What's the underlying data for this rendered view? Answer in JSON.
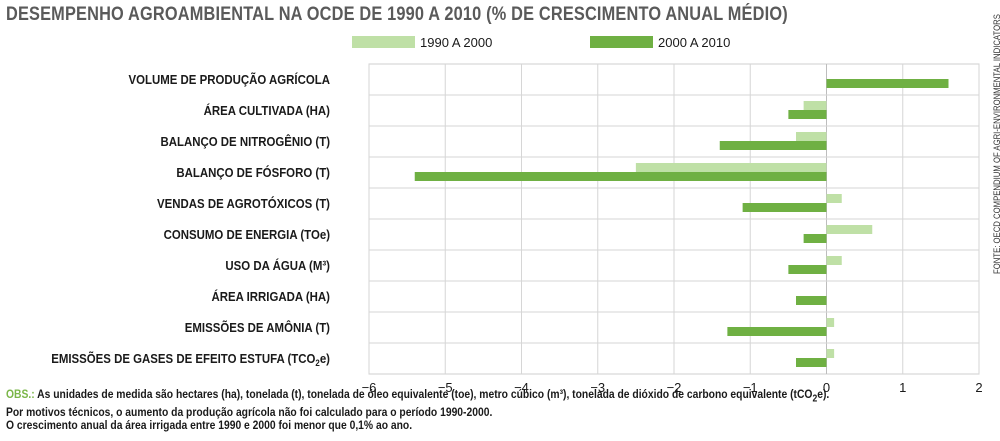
{
  "title": "DESEMPENHO AGROAMBIENTAL NA OCDE DE 1990 A 2010 (% DE CRESCIMENTO ANUAL MÉDIO)",
  "source": "FONTE: OECD COMPENDIUM OF AGRI-ENVIRONMENTAL INDICATORS",
  "notes": {
    "lead": "OBS.:",
    "line1_html": " As unidades de medida são hectares (ha), tonelada (t), tonelada de óleo equivalente (toe), metro cúbico (m³), tonelada de dióxido de carbono equivalente (tCO<sub>2</sub>e).",
    "line2": "Por motivos técnicos, o aumento da produção agrícola não foi calculado para o período 1990-2000.",
    "line3": "O crescimento anual da área irrigada entre 1990 e 2000 foi menor que 0,1% ao ano."
  },
  "chart_data": {
    "type": "bar",
    "orientation": "horizontal",
    "categories": [
      "VOLUME DE PRODUÇÃO AGRÍCOLA",
      "ÁREA CULTIVADA (HA)",
      "BALANÇO DE NITROGÊNIO (T)",
      "BALANÇO DE FÓSFORO (T)",
      "VENDAS DE AGROTÓXICOS (T)",
      "CONSUMO DE ENERGIA (TOe)",
      "USO DA ÁGUA (M³)",
      "ÁREA IRRIGADA (HA)",
      "EMISSÕES DE AMÔNIA (T)",
      "EMISSÕES DE GASES DE EFEITO ESTUFA (TCO2e)"
    ],
    "series": [
      {
        "name": "1990 A 2000",
        "color": "#bfe0a6",
        "values": [
          null,
          -0.3,
          -0.4,
          -2.5,
          0.2,
          0.6,
          0.2,
          null,
          0.1,
          0.1
        ]
      },
      {
        "name": "2000 A 2010",
        "color": "#6fb043",
        "values": [
          1.6,
          -0.5,
          -1.4,
          -5.4,
          -1.1,
          -0.3,
          -0.5,
          -0.4,
          -1.3,
          -0.4
        ]
      }
    ],
    "xlim": [
      -6,
      2
    ],
    "xticks": [
      -6,
      -5,
      -4,
      -3,
      -2,
      -1,
      0,
      1,
      2
    ],
    "grid": true,
    "legend": "top"
  }
}
